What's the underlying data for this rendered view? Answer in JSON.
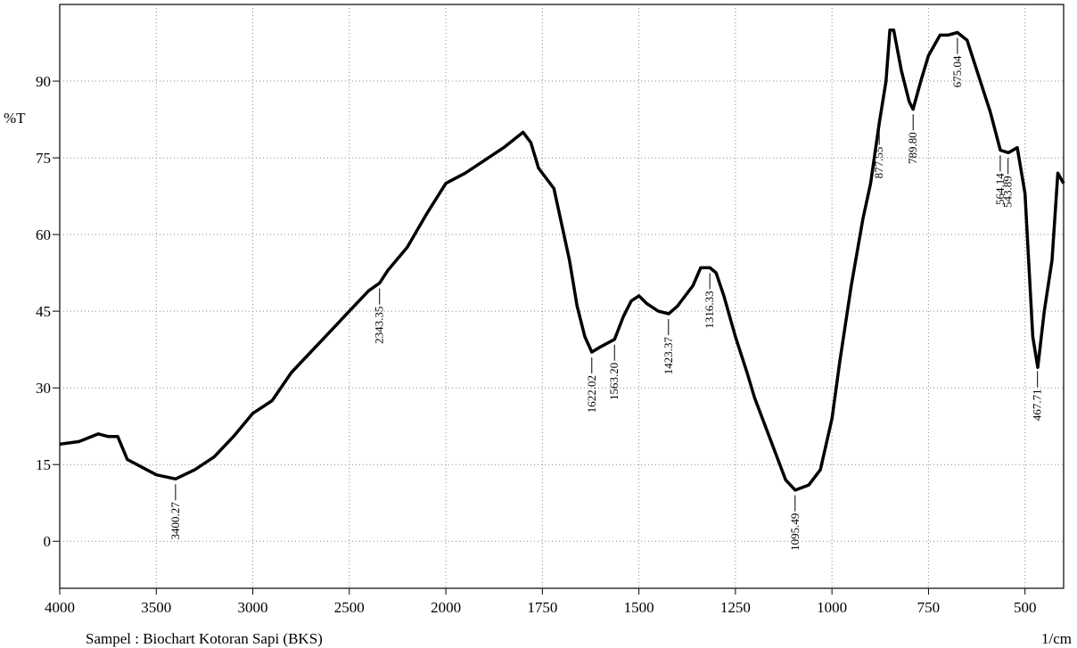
{
  "chart_data": {
    "type": "line",
    "ylabel": "%T",
    "footer_left": "Sampel : Biochart Kotoran Sapi (BKS)",
    "footer_right": "1/cm",
    "xlim": [
      4000,
      400
    ],
    "xticks": [
      4000,
      3500,
      3000,
      2500,
      2000,
      1750,
      1500,
      1250,
      1000,
      750,
      500
    ],
    "ylim": [
      -9.2,
      105
    ],
    "yticks": [
      0,
      15,
      30,
      45,
      60,
      75,
      90
    ],
    "grid": true,
    "x": [
      4000,
      3900,
      3800,
      3750,
      3700,
      3650,
      3600,
      3500,
      3400,
      3300,
      3200,
      3100,
      3000,
      2900,
      2800,
      2700,
      2600,
      2500,
      2400,
      2343,
      2300,
      2200,
      2100,
      2000,
      1950,
      1900,
      1850,
      1800,
      1780,
      1760,
      1720,
      1700,
      1680,
      1660,
      1640,
      1622,
      1600,
      1563,
      1540,
      1520,
      1500,
      1480,
      1450,
      1423,
      1400,
      1360,
      1340,
      1316,
      1300,
      1280,
      1250,
      1220,
      1200,
      1150,
      1120,
      1095,
      1060,
      1030,
      1000,
      980,
      950,
      920,
      900,
      877,
      860,
      850,
      840,
      820,
      800,
      790,
      770,
      750,
      720,
      700,
      675,
      650,
      620,
      590,
      564,
      543,
      520,
      500,
      480,
      467,
      450,
      430,
      415,
      400
    ],
    "series": [
      {
        "color": "#000000",
        "values": [
          19,
          19.5,
          21,
          20.5,
          20.5,
          16,
          15,
          13,
          12.2,
          14,
          16.5,
          20.5,
          25,
          27.5,
          33,
          37,
          41,
          45,
          49,
          50.5,
          53,
          57.5,
          64,
          70,
          72,
          74.5,
          77,
          80,
          78,
          73,
          69,
          62,
          55,
          46,
          40,
          37,
          38,
          39.5,
          44,
          47,
          48,
          46.5,
          45,
          44.5,
          46,
          50,
          53.5,
          53.5,
          52.5,
          48,
          40,
          33,
          28,
          18,
          12,
          10,
          11,
          14,
          24,
          35,
          50,
          63,
          70,
          82,
          90,
          100,
          100,
          92,
          86,
          84.5,
          90,
          95,
          99,
          99,
          99.5,
          98,
          91,
          84,
          76.5,
          76,
          77,
          68,
          40,
          34,
          45,
          55,
          72,
          70
        ]
      }
    ],
    "peaks": [
      {
        "value": 3400.27,
        "label": "3400.27"
      },
      {
        "value": 2343.35,
        "label": "2343.35"
      },
      {
        "value": 1622.02,
        "label": "1622.02"
      },
      {
        "value": 1563.2,
        "label": "1563.20"
      },
      {
        "value": 1423.37,
        "label": "1423.37"
      },
      {
        "value": 1316.33,
        "label": "1316.33"
      },
      {
        "value": 1095.49,
        "label": "1095.49"
      },
      {
        "value": 877.55,
        "label": "877.55"
      },
      {
        "value": 789.8,
        "label": "789.80"
      },
      {
        "value": 675.04,
        "label": "675.04"
      },
      {
        "value": 564.14,
        "label": "564.14"
      },
      {
        "value": 543.89,
        "label": "543.89"
      },
      {
        "value": 467.71,
        "label": "467.71"
      }
    ]
  }
}
